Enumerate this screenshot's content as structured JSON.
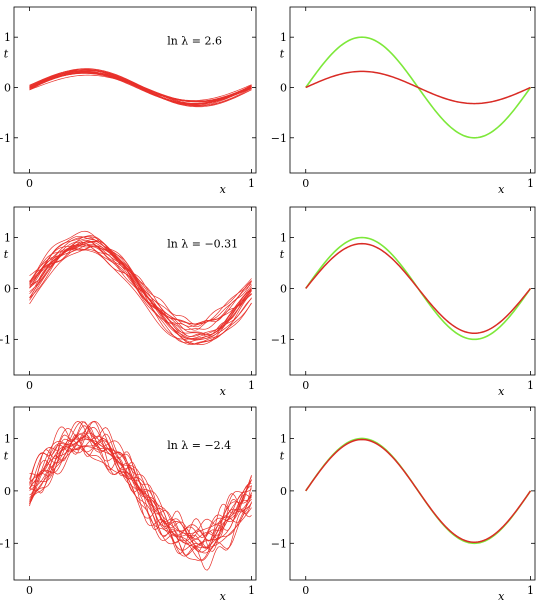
{
  "chart_data": [
    {
      "type": "line",
      "panel": "top-left",
      "annotation": "ln λ = 2.6",
      "xlabel": "x",
      "ylabel": "t",
      "xlim": [
        -0.07,
        1.02
      ],
      "ylim": [
        -1.7,
        1.6
      ],
      "xticks": [
        "0",
        "1"
      ],
      "yticks": [
        "1",
        "0",
        "−1"
      ],
      "series": [
        {
          "role": "fits",
          "color": "#e8302a",
          "count": 20,
          "shape": "0.32 sin(2πx), spread ±0.08"
        }
      ]
    },
    {
      "type": "line",
      "panel": "top-right",
      "xlabel": "x",
      "ylabel": "t",
      "xlim": [
        -0.07,
        1.02
      ],
      "ylim": [
        -1.7,
        1.6
      ],
      "xticks": [
        "0",
        "1"
      ],
      "yticks": [
        "1",
        "0",
        "−1"
      ],
      "series": [
        {
          "role": "true",
          "color": "#7de83a",
          "x": [
            0,
            0.25,
            0.5,
            0.75,
            1
          ],
          "y": [
            0,
            1.0,
            0,
            -1.0,
            0
          ]
        },
        {
          "role": "average",
          "color": "#d92b25",
          "x": [
            0,
            0.25,
            0.5,
            0.75,
            1
          ],
          "y": [
            0,
            0.32,
            0,
            -0.32,
            0
          ]
        }
      ]
    },
    {
      "type": "line",
      "panel": "middle-left",
      "annotation": "ln λ = −0.31",
      "xlabel": "x",
      "ylabel": "t",
      "xlim": [
        -0.07,
        1.02
      ],
      "ylim": [
        -1.7,
        1.6
      ],
      "xticks": [
        "0",
        "1"
      ],
      "yticks": [
        "1",
        "0",
        "−1"
      ],
      "series": [
        {
          "role": "fits",
          "color": "#e8302a",
          "count": 20,
          "shape": "0.88 sin(2πx), spread ±0.3"
        }
      ]
    },
    {
      "type": "line",
      "panel": "middle-right",
      "xlabel": "x",
      "ylabel": "t",
      "xlim": [
        -0.07,
        1.02
      ],
      "ylim": [
        -1.7,
        1.6
      ],
      "xticks": [
        "0",
        "1"
      ],
      "yticks": [
        "1",
        "0",
        "−1"
      ],
      "series": [
        {
          "role": "true",
          "color": "#7de83a",
          "x": [
            0,
            0.25,
            0.5,
            0.75,
            1
          ],
          "y": [
            0,
            1.0,
            0,
            -1.0,
            0
          ]
        },
        {
          "role": "average",
          "color": "#d92b25",
          "x": [
            0,
            0.25,
            0.5,
            0.75,
            1
          ],
          "y": [
            0,
            0.88,
            0,
            -0.88,
            0
          ]
        }
      ]
    },
    {
      "type": "line",
      "panel": "bottom-left",
      "annotation": "ln λ = −2.4",
      "xlabel": "x",
      "ylabel": "t",
      "xlim": [
        -0.07,
        1.02
      ],
      "ylim": [
        -1.7,
        1.6
      ],
      "xticks": [
        "0",
        "1"
      ],
      "yticks": [
        "1",
        "0",
        "−1"
      ],
      "series": [
        {
          "role": "fits",
          "color": "#e8302a",
          "count": 20,
          "shape": "0.98 sin(2πx) with high-frequency wiggles, spread ±0.4"
        }
      ]
    },
    {
      "type": "line",
      "panel": "bottom-right",
      "xlabel": "x",
      "ylabel": "t",
      "xlim": [
        -0.07,
        1.02
      ],
      "ylim": [
        -1.7,
        1.6
      ],
      "xticks": [
        "0",
        "1"
      ],
      "yticks": [
        "1",
        "0",
        "−1"
      ],
      "series": [
        {
          "role": "true",
          "color": "#7de83a",
          "x": [
            0,
            0.25,
            0.5,
            0.75,
            1
          ],
          "y": [
            0,
            1.0,
            0,
            -1.0,
            0
          ]
        },
        {
          "role": "average",
          "color": "#d92b25",
          "x": [
            0,
            0.25,
            0.5,
            0.75,
            1
          ],
          "y": [
            0,
            0.98,
            0,
            -0.98,
            0
          ]
        }
      ]
    }
  ]
}
